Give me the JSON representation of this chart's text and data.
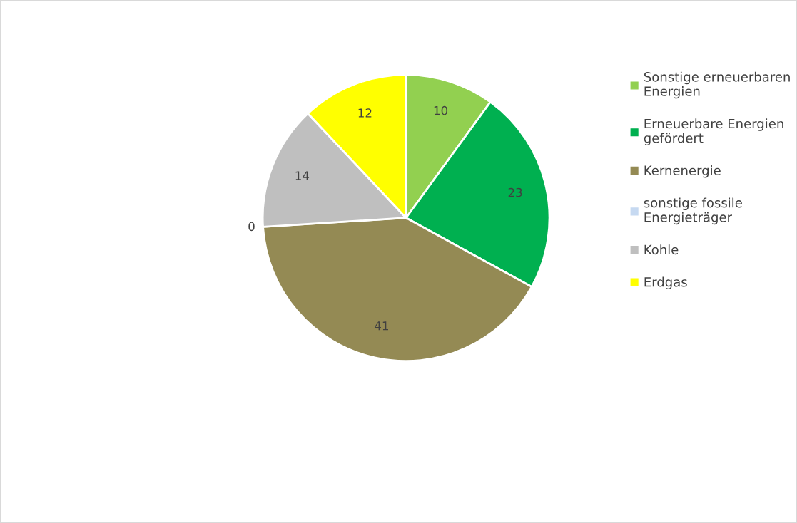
{
  "chart_data": {
    "type": "pie",
    "categories": [
      "Sonstige erneuerbaren\nEnergien",
      "Erneuerbare Energien\ngefördert",
      "Kernenergie",
      "sonstige fossile\nEnergieträger",
      "Kohle",
      "Erdgas"
    ],
    "values": [
      10,
      23,
      41,
      0,
      14,
      12
    ],
    "colors": [
      "#92d050",
      "#00b050",
      "#948a54",
      "#c6d9f1",
      "#bfbfbf",
      "#ffff00"
    ],
    "value_labels": [
      "10",
      "23",
      "41",
      "0",
      "14",
      "12"
    ],
    "legend": "right"
  }
}
